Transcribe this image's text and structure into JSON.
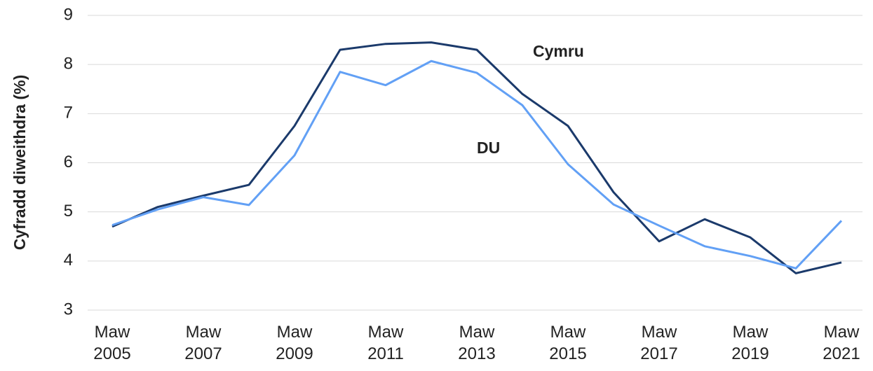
{
  "chart_data": {
    "type": "line",
    "y_label": "Cyfradd diweithdra (%)",
    "categories": [
      "Maw 2005",
      null,
      "Maw 2007",
      null,
      "Maw 2009",
      null,
      "Maw 2011",
      null,
      "Maw 2013",
      null,
      "Maw 2015",
      null,
      "Maw 2017",
      null,
      "Maw 2019",
      null,
      "Maw 2021"
    ],
    "series": [
      {
        "name": "Cymru",
        "color": "#1b3a6b",
        "values": [
          4.7,
          5.1,
          5.33,
          5.55,
          6.75,
          8.3,
          8.42,
          8.45,
          8.3,
          7.4,
          6.75,
          5.4,
          4.4,
          4.85,
          4.48,
          3.75,
          3.97
        ]
      },
      {
        "name": "DU",
        "color": "#62a0f5",
        "values": [
          4.73,
          5.05,
          5.3,
          5.14,
          6.15,
          7.85,
          7.58,
          8.07,
          7.83,
          7.17,
          5.97,
          5.15,
          4.72,
          4.3,
          4.1,
          3.85,
          4.82
        ]
      }
    ],
    "ylim": [
      3,
      9
    ],
    "yticks": [
      3,
      4,
      5,
      6,
      7,
      8,
      9
    ],
    "grid": true
  }
}
